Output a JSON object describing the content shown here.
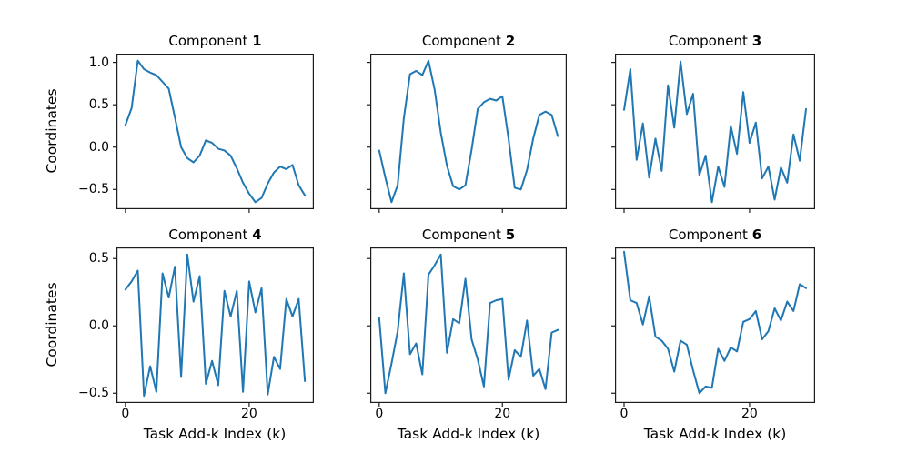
{
  "figure": {
    "ylabel": "Coordinates",
    "xlabel": "Task Add-k Index (k)",
    "line_color": "#1f77b4",
    "spine_color": "#1c1c1c"
  },
  "chart_data": [
    {
      "type": "line",
      "title": "Component 1",
      "title_prefix": "Component ",
      "component_number": "1",
      "xlabel": "Task Add-k Index (k)",
      "ylabel": "Coordinates",
      "x": [
        0,
        1,
        2,
        3,
        4,
        5,
        6,
        7,
        8,
        9,
        10,
        11,
        12,
        13,
        14,
        15,
        16,
        17,
        18,
        19,
        20,
        21,
        22,
        23,
        24,
        25,
        26,
        27,
        28,
        29
      ],
      "values": [
        0.26,
        0.46,
        1.02,
        0.92,
        0.88,
        0.85,
        0.77,
        0.69,
        0.35,
        0.0,
        -0.13,
        -0.18,
        -0.1,
        0.08,
        0.05,
        -0.02,
        -0.04,
        -0.1,
        -0.25,
        -0.42,
        -0.55,
        -0.65,
        -0.6,
        -0.43,
        -0.3,
        -0.23,
        -0.26,
        -0.21,
        -0.45,
        -0.57
      ],
      "xlim": [
        -1.45,
        30.45
      ],
      "ylim": [
        -0.733,
        1.103
      ],
      "ytick_labels": [
        "1.0",
        "0.5",
        "0.0",
        "−0.5"
      ],
      "ytick_values": [
        1.0,
        0.5,
        0.0,
        -0.5
      ],
      "xtick_labels": [
        "0",
        "20"
      ],
      "xtick_values": [
        0,
        20
      ],
      "grid": false,
      "legend": null
    },
    {
      "type": "line",
      "title": "Component 2",
      "title_prefix": "Component ",
      "component_number": "2",
      "x": [
        0,
        1,
        2,
        3,
        4,
        5,
        6,
        7,
        8,
        9,
        10,
        11,
        12,
        13,
        14,
        15,
        16,
        17,
        18,
        19,
        20,
        21,
        22,
        23,
        24,
        25,
        26,
        27,
        28,
        29
      ],
      "values": [
        -0.04,
        -0.36,
        -0.65,
        -0.45,
        0.34,
        0.86,
        0.9,
        0.85,
        1.02,
        0.68,
        0.17,
        -0.22,
        -0.46,
        -0.5,
        -0.45,
        -0.03,
        0.45,
        0.53,
        0.57,
        0.55,
        0.6,
        0.1,
        -0.48,
        -0.5,
        -0.27,
        0.1,
        0.38,
        0.42,
        0.38,
        0.13
      ],
      "xlim": [
        -1.45,
        30.45
      ],
      "ylim": [
        -0.733,
        1.103
      ],
      "ytick_values": [
        1.0,
        0.5,
        0.0,
        -0.5
      ],
      "xtick_values": [
        0,
        20
      ],
      "grid": false,
      "legend": null
    },
    {
      "type": "line",
      "title": "Component 3",
      "title_prefix": "Component ",
      "component_number": "3",
      "x": [
        0,
        1,
        2,
        3,
        4,
        5,
        6,
        7,
        8,
        9,
        10,
        11,
        12,
        13,
        14,
        15,
        16,
        17,
        18,
        19,
        20,
        21,
        22,
        23,
        24,
        25,
        26,
        27,
        28,
        29
      ],
      "values": [
        0.44,
        0.92,
        -0.15,
        0.28,
        -0.36,
        0.1,
        -0.28,
        0.73,
        0.23,
        1.01,
        0.39,
        0.63,
        -0.33,
        -0.1,
        -0.65,
        -0.23,
        -0.47,
        0.25,
        -0.08,
        0.65,
        0.05,
        0.29,
        -0.37,
        -0.23,
        -0.62,
        -0.24,
        -0.42,
        0.15,
        -0.16,
        0.45
      ],
      "xlim": [
        -1.45,
        30.45
      ],
      "ylim": [
        -0.733,
        1.103
      ],
      "ytick_values": [
        1.0,
        0.5,
        0.0,
        -0.5
      ],
      "xtick_values": [
        0,
        20
      ],
      "grid": false,
      "legend": null
    },
    {
      "type": "line",
      "title": "Component 4",
      "title_prefix": "Component ",
      "component_number": "4",
      "xlabel": "Task Add-k Index (k)",
      "ylabel": "Coordinates",
      "x": [
        0,
        1,
        2,
        3,
        4,
        5,
        6,
        7,
        8,
        9,
        10,
        11,
        12,
        13,
        14,
        15,
        16,
        17,
        18,
        19,
        20,
        21,
        22,
        23,
        24,
        25,
        26,
        27,
        28,
        29
      ],
      "values": [
        0.27,
        0.33,
        0.41,
        -0.52,
        -0.3,
        -0.49,
        0.39,
        0.21,
        0.44,
        -0.38,
        0.53,
        0.18,
        0.37,
        -0.43,
        -0.26,
        -0.44,
        0.26,
        0.07,
        0.26,
        -0.49,
        0.33,
        0.1,
        0.28,
        -0.51,
        -0.23,
        -0.32,
        0.2,
        0.07,
        0.2,
        -0.41
      ],
      "xlim": [
        -1.45,
        30.45
      ],
      "ylim": [
        -0.5725,
        0.5825
      ],
      "ytick_labels": [
        "0.5",
        "0.0",
        "−0.5"
      ],
      "ytick_values": [
        0.5,
        0.0,
        -0.5
      ],
      "xtick_labels": [
        "0",
        "20"
      ],
      "xtick_values": [
        0,
        20
      ],
      "grid": false,
      "legend": null
    },
    {
      "type": "line",
      "title": "Component 5",
      "title_prefix": "Component ",
      "component_number": "5",
      "xlabel": "Task Add-k Index (k)",
      "x": [
        0,
        1,
        2,
        3,
        4,
        5,
        6,
        7,
        8,
        9,
        10,
        11,
        12,
        13,
        14,
        15,
        16,
        17,
        18,
        19,
        20,
        21,
        22,
        23,
        24,
        25,
        26,
        27,
        28,
        29
      ],
      "values": [
        0.06,
        -0.5,
        -0.28,
        -0.04,
        0.39,
        -0.21,
        -0.13,
        -0.36,
        0.38,
        0.45,
        0.53,
        -0.2,
        0.05,
        0.02,
        0.35,
        -0.1,
        -0.25,
        -0.45,
        0.17,
        0.19,
        0.2,
        -0.4,
        -0.18,
        -0.23,
        0.04,
        -0.37,
        -0.32,
        -0.47,
        -0.05,
        -0.03
      ],
      "xlim": [
        -1.45,
        30.45
      ],
      "ylim": [
        -0.5725,
        0.5825
      ],
      "ytick_values": [
        0.5,
        0.0,
        -0.5
      ],
      "xtick_labels": [
        "0",
        "20"
      ],
      "xtick_values": [
        0,
        20
      ],
      "grid": false,
      "legend": null
    },
    {
      "type": "line",
      "title": "Component 6",
      "title_prefix": "Component ",
      "component_number": "6",
      "xlabel": "Task Add-k Index (k)",
      "x": [
        0,
        1,
        2,
        3,
        4,
        5,
        6,
        7,
        8,
        9,
        10,
        11,
        12,
        13,
        14,
        15,
        16,
        17,
        18,
        19,
        20,
        21,
        22,
        23,
        24,
        25,
        26,
        27,
        28,
        29
      ],
      "values": [
        0.55,
        0.19,
        0.17,
        0.01,
        0.22,
        -0.08,
        -0.11,
        -0.17,
        -0.34,
        -0.11,
        -0.14,
        -0.33,
        -0.5,
        -0.45,
        -0.46,
        -0.17,
        -0.26,
        -0.16,
        -0.19,
        0.03,
        0.05,
        0.11,
        -0.1,
        -0.04,
        0.13,
        0.04,
        0.18,
        0.11,
        0.31,
        0.28
      ],
      "xlim": [
        -1.45,
        30.45
      ],
      "ylim": [
        -0.5725,
        0.5825
      ],
      "ytick_values": [
        0.5,
        0.0,
        -0.5
      ],
      "xtick_labels": [
        "0",
        "20"
      ],
      "xtick_values": [
        0,
        20
      ],
      "grid": false,
      "legend": null
    }
  ]
}
